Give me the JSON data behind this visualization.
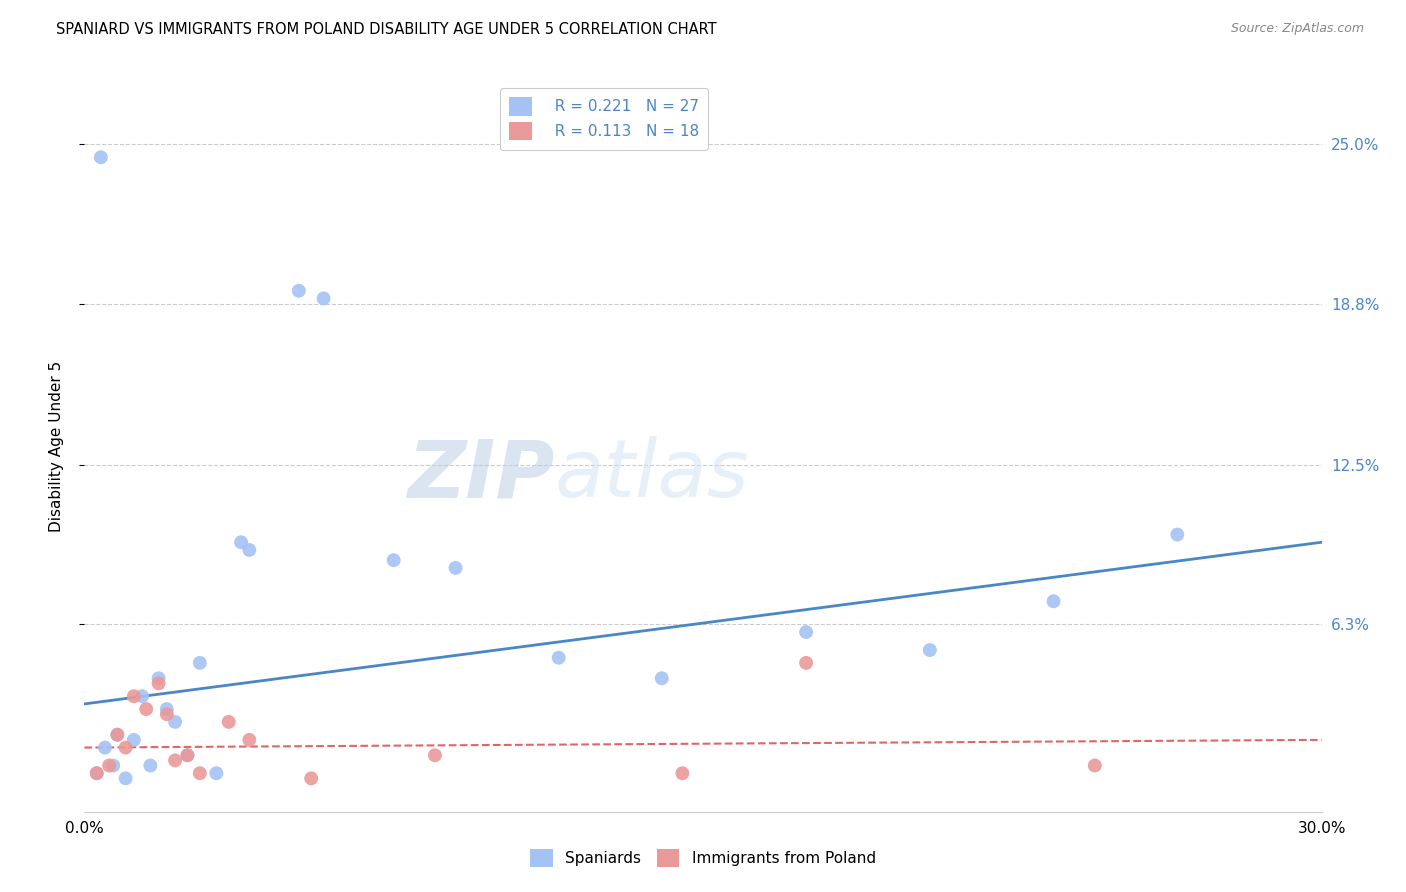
{
  "title": "SPANIARD VS IMMIGRANTS FROM POLAND DISABILITY AGE UNDER 5 CORRELATION CHART",
  "source": "Source: ZipAtlas.com",
  "ylabel": "Disability Age Under 5",
  "ytick_values": [
    6.3,
    12.5,
    18.8,
    25.0
  ],
  "ytick_labels": [
    "6.3%",
    "12.5%",
    "18.8%",
    "25.0%"
  ],
  "xlim": [
    0.0,
    30.0
  ],
  "ylim": [
    -1.0,
    27.5
  ],
  "legend_r1": "R = 0.221",
  "legend_n1": "N = 27",
  "legend_r2": "R = 0.113",
  "legend_n2": "N = 18",
  "legend_label1": "Spaniards",
  "legend_label2": "Immigrants from Poland",
  "blue_color": "#a4c2f4",
  "pink_color": "#ea9999",
  "blue_line_color": "#4a86c8",
  "pink_line_color": "#e06666",
  "watermark_zip": "ZIP",
  "watermark_atlas": "atlas",
  "spaniards_x": [
    0.3,
    0.5,
    0.7,
    0.8,
    1.0,
    1.2,
    1.4,
    1.6,
    1.8,
    2.0,
    2.2,
    2.5,
    2.8,
    3.2,
    3.8,
    4.0,
    5.2,
    5.8,
    7.5,
    9.0,
    11.5,
    14.0,
    17.5,
    20.5,
    23.5,
    26.5,
    0.4
  ],
  "spaniards_y": [
    0.5,
    1.5,
    0.8,
    2.0,
    0.3,
    1.8,
    3.5,
    0.8,
    4.2,
    3.0,
    2.5,
    1.2,
    4.8,
    0.5,
    9.5,
    9.2,
    19.3,
    19.0,
    8.8,
    8.5,
    5.0,
    4.2,
    6.0,
    5.3,
    7.2,
    9.8,
    24.5
  ],
  "poland_x": [
    0.3,
    0.6,
    0.8,
    1.0,
    1.2,
    1.5,
    1.8,
    2.0,
    2.5,
    2.8,
    3.5,
    4.0,
    5.5,
    8.5,
    14.5,
    17.5,
    24.5,
    2.2
  ],
  "poland_y": [
    0.5,
    0.8,
    2.0,
    1.5,
    3.5,
    3.0,
    4.0,
    2.8,
    1.2,
    0.5,
    2.5,
    1.8,
    0.3,
    1.2,
    0.5,
    4.8,
    0.8,
    1.0
  ],
  "blue_trend_x": [
    0.0,
    30.0
  ],
  "blue_trend_y": [
    3.2,
    9.5
  ],
  "pink_trend_x": [
    0.0,
    30.0
  ],
  "pink_trend_y": [
    1.5,
    1.8
  ]
}
